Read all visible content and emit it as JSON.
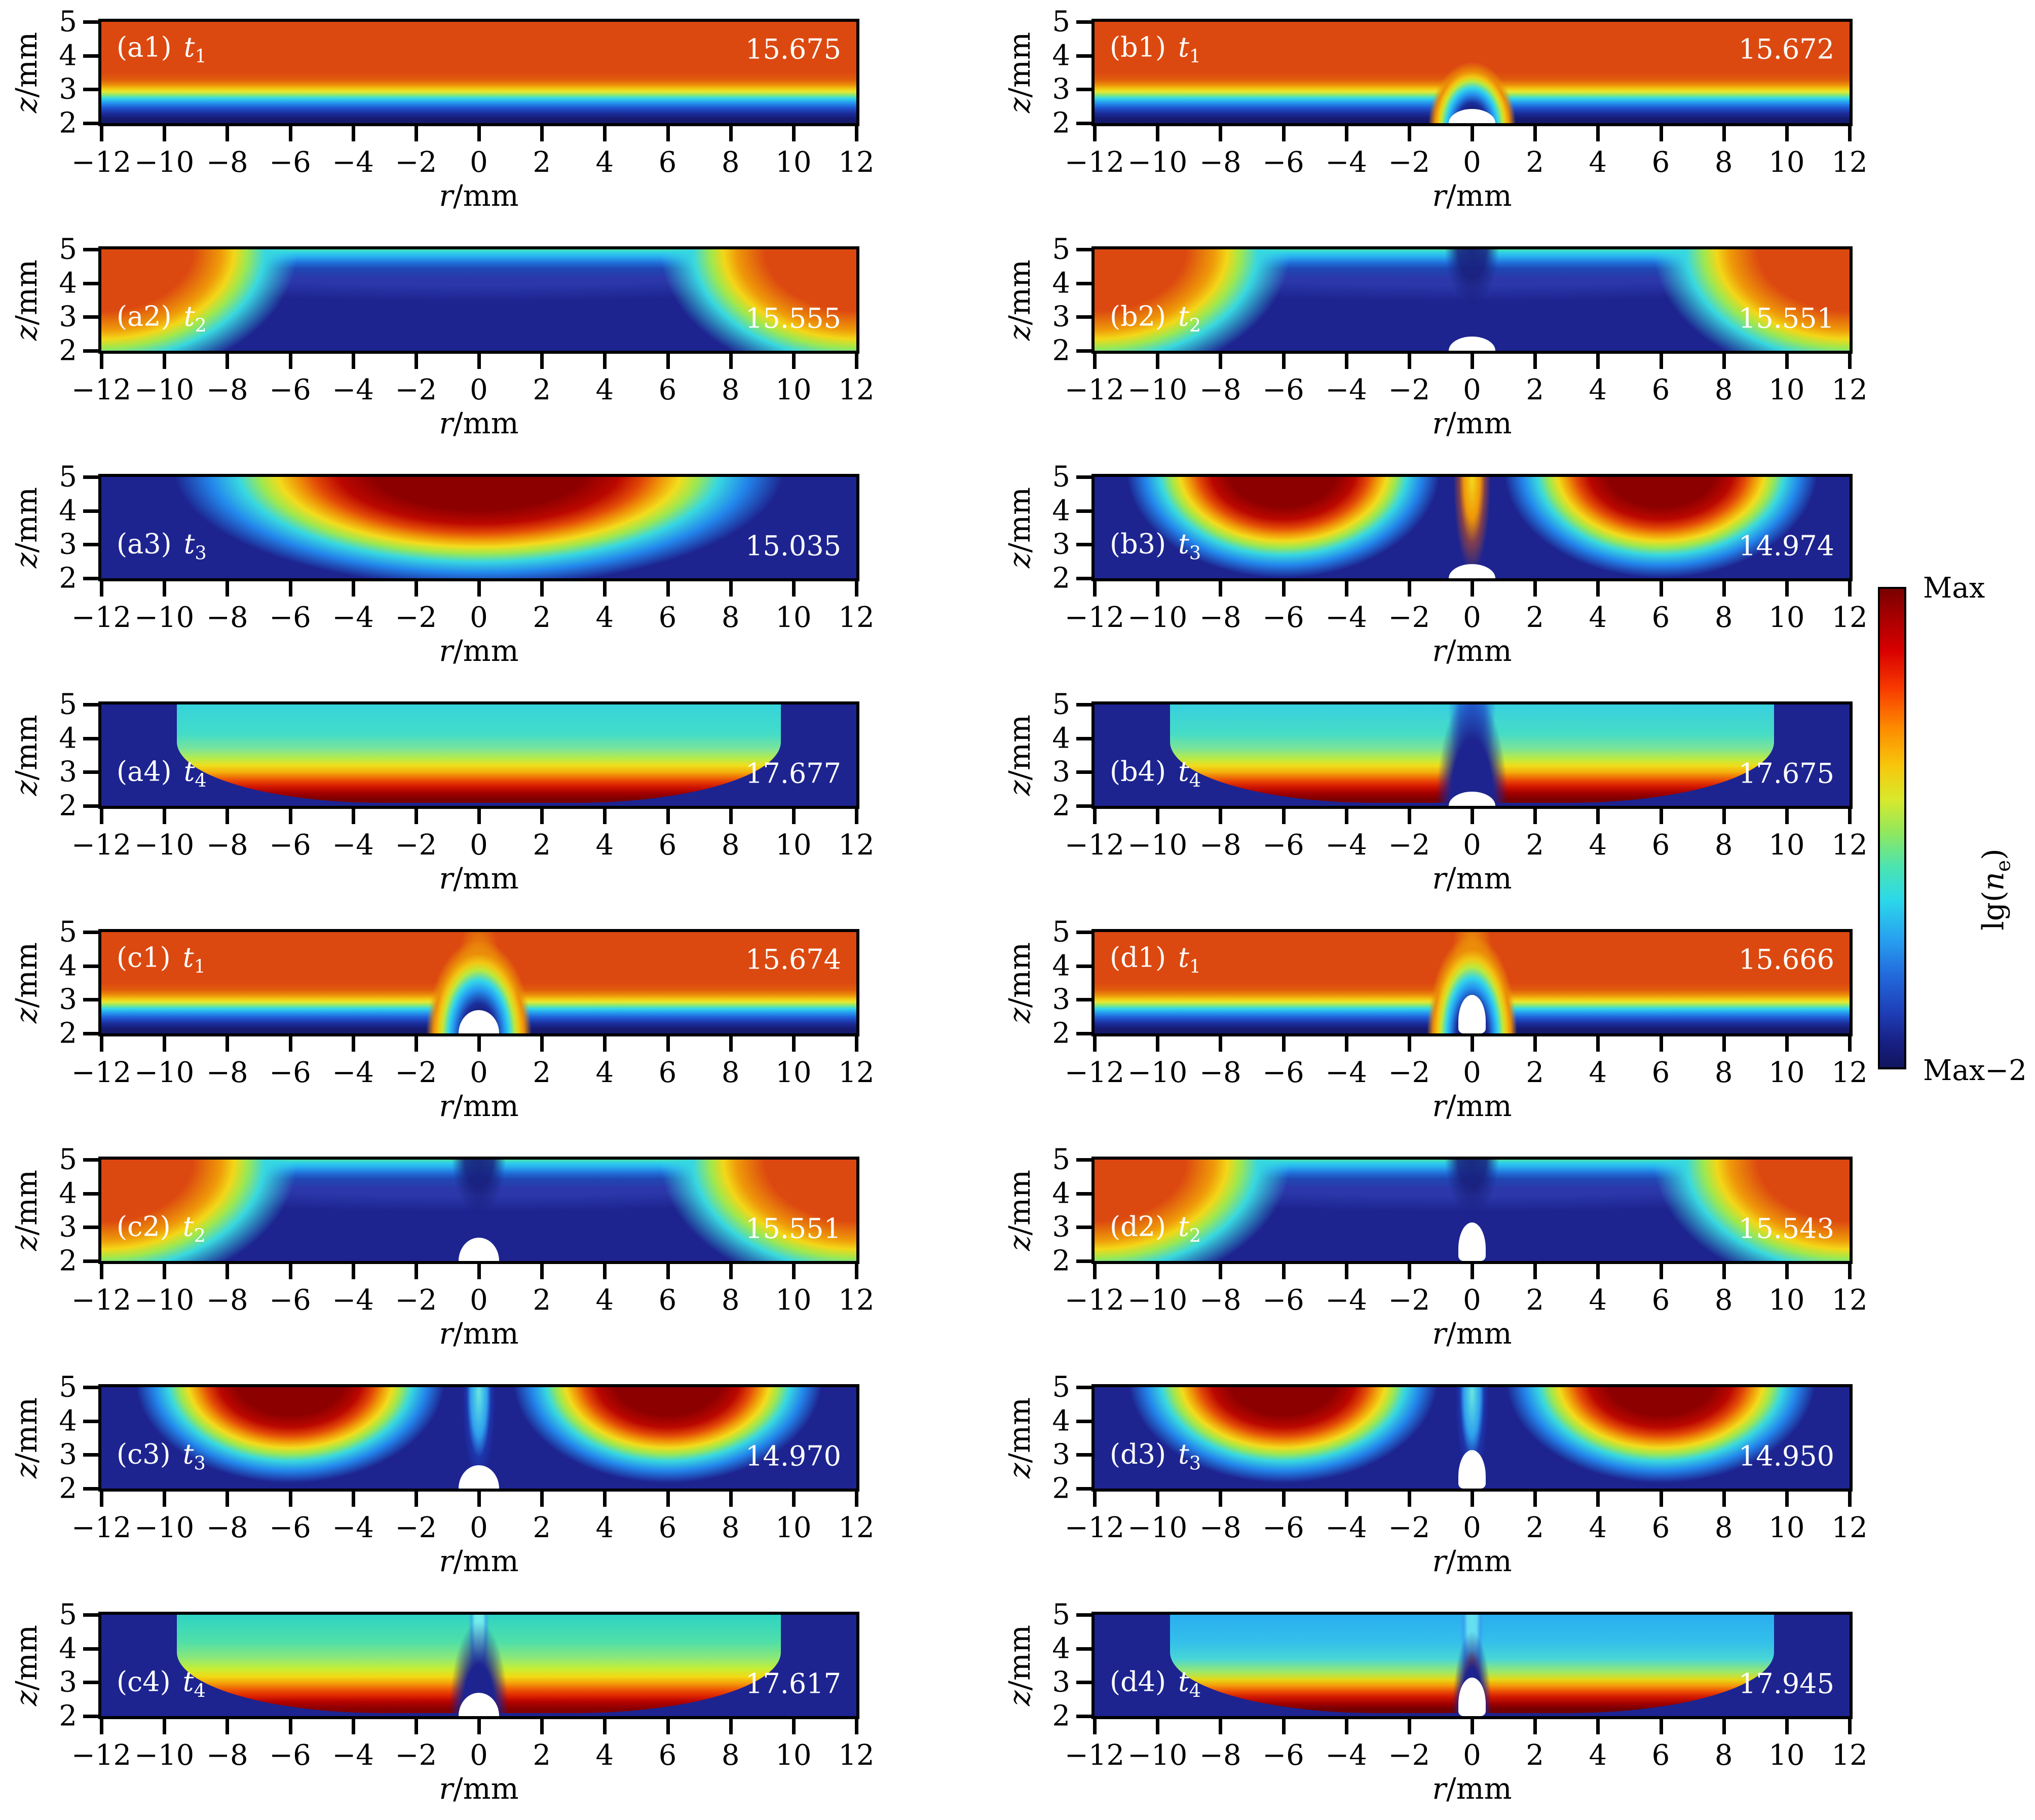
{
  "axes": {
    "x_label_var": "r",
    "x_label_unit": "/mm",
    "y_label_var": "z",
    "y_label_unit": "/mm",
    "x_ticks": [
      "−12",
      "−10",
      "−8",
      "−6",
      "−4",
      "−2",
      "0",
      "2",
      "4",
      "6",
      "8",
      "10",
      "12"
    ],
    "y_ticks": [
      "5",
      "4",
      "3",
      "2"
    ]
  },
  "colorbar": {
    "max_label": "Max",
    "min_label": "Max−2",
    "label_prefix": "lg(",
    "label_var": "n",
    "label_sub": "e",
    "label_suffix": ")"
  },
  "panels": [
    {
      "id": "a1",
      "tag": "(a1)",
      "time_var": "t",
      "time_sub": "1",
      "value": "15.675",
      "particle": "none",
      "label_pos": "top"
    },
    {
      "id": "b1",
      "tag": "(b1)",
      "time_var": "t",
      "time_sub": "1",
      "value": "15.672",
      "particle": "half-sm",
      "label_pos": "top"
    },
    {
      "id": "a2",
      "tag": "(a2)",
      "time_var": "t",
      "time_sub": "2",
      "value": "15.555",
      "particle": "none",
      "label_pos": "mid"
    },
    {
      "id": "b2",
      "tag": "(b2)",
      "time_var": "t",
      "time_sub": "2",
      "value": "15.551",
      "particle": "half-sm",
      "label_pos": "mid"
    },
    {
      "id": "a3",
      "tag": "(a3)",
      "time_var": "t",
      "time_sub": "3",
      "value": "15.035",
      "particle": "none",
      "label_pos": "mid"
    },
    {
      "id": "b3",
      "tag": "(b3)",
      "time_var": "t",
      "time_sub": "3",
      "value": "14.974",
      "particle": "half-sm",
      "label_pos": "mid"
    },
    {
      "id": "a4",
      "tag": "(a4)",
      "time_var": "t",
      "time_sub": "4",
      "value": "17.677",
      "particle": "none",
      "label_pos": "mid"
    },
    {
      "id": "b4",
      "tag": "(b4)",
      "time_var": "t",
      "time_sub": "4",
      "value": "17.675",
      "particle": "half-sm",
      "label_pos": "mid"
    },
    {
      "id": "c1",
      "tag": "(c1)",
      "time_var": "t",
      "time_sub": "1",
      "value": "15.674",
      "particle": "half-lg",
      "label_pos": "top"
    },
    {
      "id": "d1",
      "tag": "(d1)",
      "time_var": "t",
      "time_sub": "1",
      "value": "15.666",
      "particle": "egg",
      "label_pos": "top"
    },
    {
      "id": "c2",
      "tag": "(c2)",
      "time_var": "t",
      "time_sub": "2",
      "value": "15.551",
      "particle": "half-lg",
      "label_pos": "mid"
    },
    {
      "id": "d2",
      "tag": "(d2)",
      "time_var": "t",
      "time_sub": "2",
      "value": "15.543",
      "particle": "egg",
      "label_pos": "mid"
    },
    {
      "id": "c3",
      "tag": "(c3)",
      "time_var": "t",
      "time_sub": "3",
      "value": "14.970",
      "particle": "half-lg",
      "label_pos": "mid"
    },
    {
      "id": "d3",
      "tag": "(d3)",
      "time_var": "t",
      "time_sub": "3",
      "value": "14.950",
      "particle": "egg",
      "label_pos": "mid"
    },
    {
      "id": "c4",
      "tag": "(c4)",
      "time_var": "t",
      "time_sub": "4",
      "value": "17.617",
      "particle": "half-lg",
      "label_pos": "mid"
    },
    {
      "id": "d4",
      "tag": "(d4)",
      "time_var": "t",
      "time_sub": "4",
      "value": "17.945",
      "particle": "egg",
      "label_pos": "mid"
    }
  ],
  "chart_data": {
    "type": "heatmap",
    "title": "Electron density distributions lg(n_e) in r-z plane at four times, cases a-d",
    "xlabel": "r/mm",
    "ylabel": "z/mm",
    "x_range": [
      -12,
      12
    ],
    "y_range": [
      2,
      5
    ],
    "x_ticks": [
      -12,
      -10,
      -8,
      -6,
      -4,
      -2,
      0,
      2,
      4,
      6,
      8,
      10,
      12
    ],
    "y_ticks": [
      5,
      4,
      3,
      2
    ],
    "grid": false,
    "colormap": "jet",
    "colorbar": {
      "label": "lg(n_e)",
      "top": "Max",
      "bottom": "Max−2",
      "span_decades": 2
    },
    "panels": [
      {
        "id": "a1",
        "time": "t1",
        "max_lg_ne": 15.675,
        "feature": "uniform high-density slab above z≈2.7, no particle"
      },
      {
        "id": "b1",
        "time": "t1",
        "max_lg_ne": 15.672,
        "feature": "slab with small bump over hemispherical particle at r=0"
      },
      {
        "id": "a2",
        "time": "t2",
        "max_lg_ne": 15.555,
        "feature": "decayed background, hot wedges in top corners"
      },
      {
        "id": "b2",
        "time": "t2",
        "max_lg_ne": 15.551,
        "feature": "decayed background, corner wedges, dark plume over small particle"
      },
      {
        "id": "a3",
        "time": "t3",
        "max_lg_ne": 15.035,
        "feature": "single detached hot blob along top, r≈-10..10"
      },
      {
        "id": "b3",
        "time": "t3",
        "max_lg_ne": 14.974,
        "feature": "blob split at r=0 by yellow column, small particle"
      },
      {
        "id": "a4",
        "time": "t4",
        "max_lg_ne": 17.677,
        "feature": "expanded cool dome with hot red sheath near z≈2.2"
      },
      {
        "id": "b4",
        "time": "t4",
        "max_lg_ne": 17.675,
        "feature": "dome split by dark axial notch, two red bottom lobes, small particle"
      },
      {
        "id": "c1",
        "time": "t1",
        "max_lg_ne": 15.674,
        "feature": "slab with plume above larger hemispherical particle"
      },
      {
        "id": "d1",
        "time": "t1",
        "max_lg_ne": 15.666,
        "feature": "slab with strong plume above tall egg-shaped particle"
      },
      {
        "id": "c2",
        "time": "t2",
        "max_lg_ne": 15.551,
        "feature": "decayed background, corner wedges, plume over large particle"
      },
      {
        "id": "d2",
        "time": "t2",
        "max_lg_ne": 15.543,
        "feature": "decayed background, corner wedges, plume over tall particle"
      },
      {
        "id": "c3",
        "time": "t3",
        "max_lg_ne": 14.97,
        "feature": "split blob, cyan axial column, large particle"
      },
      {
        "id": "d3",
        "time": "t3",
        "max_lg_ne": 14.95,
        "feature": "split blob, cyan axial column, tall particle"
      },
      {
        "id": "c4",
        "time": "t4",
        "max_lg_ne": 17.617,
        "feature": "greenish dome split by notch, red bottom lobes, large particle"
      },
      {
        "id": "d4",
        "time": "t4",
        "max_lg_ne": 17.945,
        "feature": "bluish dome, narrow notch with red jet above tall particle"
      }
    ]
  }
}
